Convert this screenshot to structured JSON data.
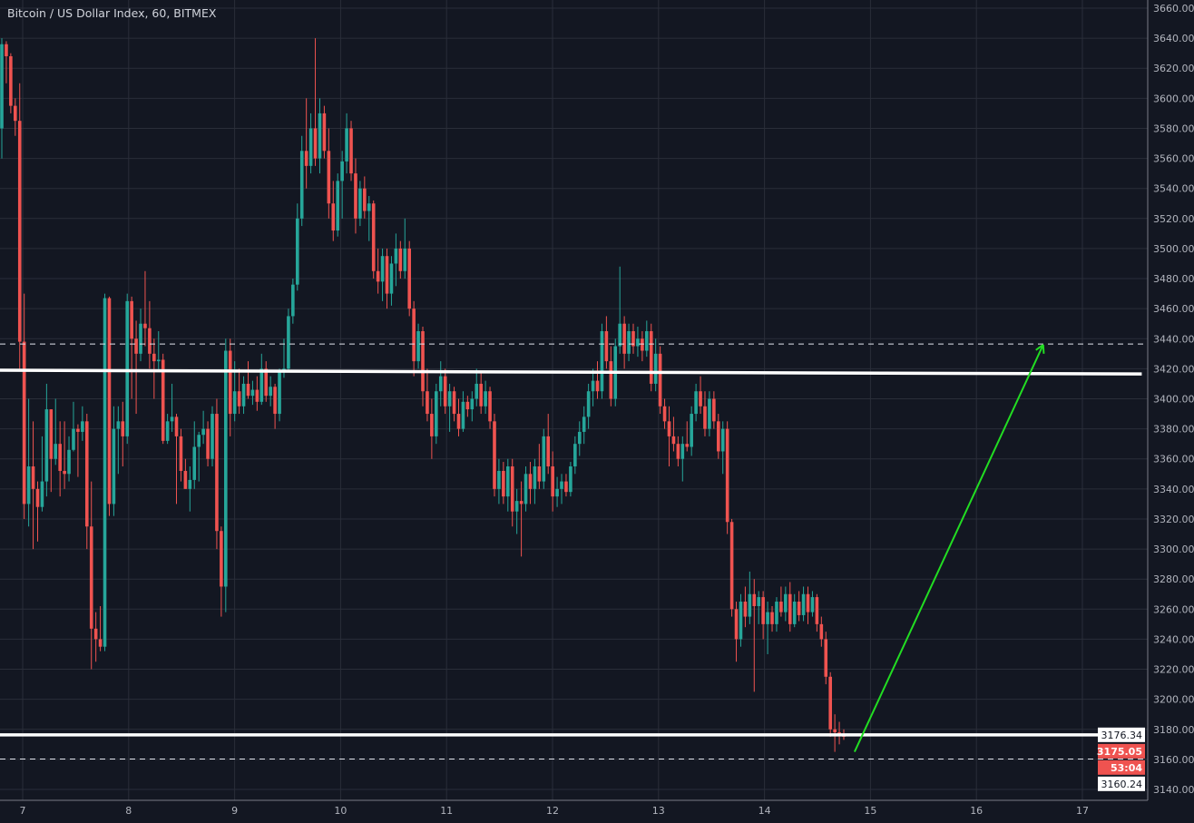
{
  "header": {
    "title": "Bitcoin / US Dollar Index, 60, BITMEX"
  },
  "colors": {
    "background": "#131722",
    "grid": "#2a2e39",
    "up": "#26a69a",
    "down": "#ef5350",
    "axis_text": "#b2b5be",
    "drawing_line": "#ffffff",
    "arrow": "#22dd22"
  },
  "chart_data": {
    "type": "candlestick",
    "title": "Bitcoin / US Dollar Index, 60, BITMEX",
    "interval": "60",
    "ylim": [
      3140,
      3660
    ],
    "xlim": [
      6.786,
      17.6
    ],
    "grid": true,
    "y_ticks": [
      "3660.00",
      "3640.00",
      "3620.00",
      "3600.00",
      "3580.00",
      "3560.00",
      "3540.00",
      "3520.00",
      "3500.00",
      "3480.00",
      "3460.00",
      "3440.00",
      "3420.00",
      "3400.00",
      "3380.00",
      "3360.00",
      "3340.00",
      "3320.00",
      "3300.00",
      "3280.00",
      "3260.00",
      "3240.00",
      "3220.00",
      "3200.00",
      "3180.00",
      "3160.00",
      "3140.00"
    ],
    "x_ticks": [
      "7",
      "8",
      "9",
      "10",
      "11",
      "12",
      "13",
      "14",
      "15",
      "16",
      "17"
    ],
    "candles_ohlc": [
      [
        3580,
        3640,
        3560,
        3636
      ],
      [
        3636,
        3638,
        3610,
        3628
      ],
      [
        3628,
        3630,
        3590,
        3595
      ],
      [
        3595,
        3600,
        3575,
        3585
      ],
      [
        3585,
        3610,
        3420,
        3438
      ],
      [
        3438,
        3470,
        3320,
        3330
      ],
      [
        3330,
        3400,
        3315,
        3355
      ],
      [
        3355,
        3385,
        3300,
        3340
      ],
      [
        3340,
        3345,
        3305,
        3328
      ],
      [
        3328,
        3375,
        3325,
        3345
      ],
      [
        3345,
        3410,
        3335,
        3393
      ],
      [
        3393,
        3393,
        3338,
        3360
      ],
      [
        3360,
        3400,
        3356,
        3370
      ],
      [
        3370,
        3385,
        3335,
        3352
      ],
      [
        3352,
        3385,
        3340,
        3350
      ],
      [
        3350,
        3375,
        3345,
        3366
      ],
      [
        3366,
        3398,
        3365,
        3380
      ],
      [
        3380,
        3383,
        3348,
        3378
      ],
      [
        3378,
        3395,
        3372,
        3385
      ],
      [
        3385,
        3390,
        3300,
        3315
      ],
      [
        3315,
        3345,
        3220,
        3247
      ],
      [
        3247,
        3258,
        3225,
        3240
      ],
      [
        3240,
        3262,
        3232,
        3235
      ],
      [
        3235,
        3470,
        3232,
        3467
      ],
      [
        3467,
        3468,
        3322,
        3330
      ],
      [
        3330,
        3395,
        3322,
        3380
      ],
      [
        3380,
        3395,
        3350,
        3385
      ],
      [
        3385,
        3398,
        3355,
        3375
      ],
      [
        3375,
        3470,
        3370,
        3465
      ],
      [
        3465,
        3468,
        3400,
        3440
      ],
      [
        3440,
        3452,
        3390,
        3430
      ],
      [
        3430,
        3460,
        3425,
        3450
      ],
      [
        3450,
        3485,
        3435,
        3447
      ],
      [
        3447,
        3465,
        3420,
        3430
      ],
      [
        3430,
        3440,
        3400,
        3425
      ],
      [
        3425,
        3445,
        3418,
        3426
      ],
      [
        3426,
        3430,
        3370,
        3372
      ],
      [
        3372,
        3390,
        3370,
        3385
      ],
      [
        3385,
        3410,
        3378,
        3388
      ],
      [
        3388,
        3390,
        3330,
        3375
      ],
      [
        3375,
        3380,
        3345,
        3352
      ],
      [
        3352,
        3360,
        3340,
        3340
      ],
      [
        3340,
        3355,
        3325,
        3346
      ],
      [
        3346,
        3385,
        3340,
        3368
      ],
      [
        3368,
        3378,
        3345,
        3376
      ],
      [
        3376,
        3392,
        3370,
        3380
      ],
      [
        3380,
        3385,
        3355,
        3360
      ],
      [
        3360,
        3395,
        3355,
        3390
      ],
      [
        3390,
        3400,
        3300,
        3312
      ],
      [
        3312,
        3315,
        3255,
        3275
      ],
      [
        3275,
        3440,
        3258,
        3432
      ],
      [
        3432,
        3440,
        3375,
        3390
      ],
      [
        3390,
        3425,
        3385,
        3405
      ],
      [
        3405,
        3420,
        3390,
        3395
      ],
      [
        3395,
        3415,
        3390,
        3410
      ],
      [
        3410,
        3425,
        3400,
        3402
      ],
      [
        3402,
        3412,
        3396,
        3406
      ],
      [
        3406,
        3415,
        3392,
        3398
      ],
      [
        3398,
        3430,
        3396,
        3420
      ],
      [
        3420,
        3425,
        3398,
        3402
      ],
      [
        3402,
        3415,
        3395,
        3408
      ],
      [
        3408,
        3410,
        3380,
        3390
      ],
      [
        3390,
        3420,
        3385,
        3418
      ],
      [
        3418,
        3440,
        3414,
        3420
      ],
      [
        3420,
        3460,
        3418,
        3455
      ],
      [
        3455,
        3480,
        3450,
        3476
      ],
      [
        3476,
        3530,
        3472,
        3520
      ],
      [
        3520,
        3575,
        3515,
        3565
      ],
      [
        3565,
        3600,
        3540,
        3555
      ],
      [
        3555,
        3590,
        3550,
        3580
      ],
      [
        3580,
        3640,
        3555,
        3560
      ],
      [
        3560,
        3600,
        3550,
        3590
      ],
      [
        3590,
        3595,
        3560,
        3565
      ],
      [
        3565,
        3580,
        3520,
        3530
      ],
      [
        3530,
        3545,
        3505,
        3512
      ],
      [
        3512,
        3550,
        3508,
        3545
      ],
      [
        3545,
        3565,
        3520,
        3558
      ],
      [
        3558,
        3590,
        3550,
        3580
      ],
      [
        3580,
        3585,
        3545,
        3550
      ],
      [
        3550,
        3560,
        3510,
        3520
      ],
      [
        3520,
        3545,
        3515,
        3540
      ],
      [
        3540,
        3548,
        3520,
        3525
      ],
      [
        3525,
        3535,
        3505,
        3530
      ],
      [
        3530,
        3532,
        3480,
        3485
      ],
      [
        3485,
        3500,
        3470,
        3478
      ],
      [
        3478,
        3500,
        3465,
        3495
      ],
      [
        3495,
        3500,
        3460,
        3470
      ],
      [
        3470,
        3495,
        3462,
        3490
      ],
      [
        3490,
        3510,
        3475,
        3500
      ],
      [
        3500,
        3505,
        3480,
        3485
      ],
      [
        3485,
        3520,
        3480,
        3500
      ],
      [
        3500,
        3505,
        3455,
        3460
      ],
      [
        3460,
        3465,
        3415,
        3425
      ],
      [
        3425,
        3450,
        3420,
        3445
      ],
      [
        3445,
        3448,
        3395,
        3405
      ],
      [
        3405,
        3420,
        3385,
        3390
      ],
      [
        3390,
        3400,
        3360,
        3375
      ],
      [
        3375,
        3410,
        3370,
        3405
      ],
      [
        3405,
        3425,
        3395,
        3415
      ],
      [
        3415,
        3420,
        3390,
        3395
      ],
      [
        3395,
        3410,
        3378,
        3405
      ],
      [
        3405,
        3408,
        3385,
        3390
      ],
      [
        3390,
        3400,
        3375,
        3380
      ],
      [
        3380,
        3405,
        3378,
        3398
      ],
      [
        3398,
        3402,
        3388,
        3393
      ],
      [
        3393,
        3405,
        3385,
        3400
      ],
      [
        3400,
        3420,
        3395,
        3410
      ],
      [
        3410,
        3418,
        3390,
        3395
      ],
      [
        3395,
        3412,
        3390,
        3405
      ],
      [
        3405,
        3408,
        3380,
        3385
      ],
      [
        3385,
        3390,
        3335,
        3340
      ],
      [
        3340,
        3360,
        3330,
        3352
      ],
      [
        3352,
        3358,
        3330,
        3335
      ],
      [
        3335,
        3360,
        3325,
        3355
      ],
      [
        3355,
        3360,
        3315,
        3325
      ],
      [
        3325,
        3340,
        3310,
        3332
      ],
      [
        3332,
        3345,
        3295,
        3330
      ],
      [
        3330,
        3355,
        3325,
        3350
      ],
      [
        3350,
        3358,
        3330,
        3340
      ],
      [
        3340,
        3360,
        3330,
        3355
      ],
      [
        3355,
        3370,
        3340,
        3345
      ],
      [
        3345,
        3380,
        3340,
        3375
      ],
      [
        3375,
        3390,
        3350,
        3355
      ],
      [
        3355,
        3365,
        3325,
        3335
      ],
      [
        3335,
        3348,
        3328,
        3340
      ],
      [
        3340,
        3350,
        3330,
        3345
      ],
      [
        3345,
        3350,
        3335,
        3338
      ],
      [
        3338,
        3358,
        3335,
        3355
      ],
      [
        3355,
        3375,
        3350,
        3370
      ],
      [
        3370,
        3385,
        3362,
        3378
      ],
      [
        3378,
        3395,
        3370,
        3388
      ],
      [
        3388,
        3410,
        3380,
        3405
      ],
      [
        3405,
        3420,
        3395,
        3412
      ],
      [
        3412,
        3425,
        3400,
        3405
      ],
      [
        3405,
        3450,
        3400,
        3445
      ],
      [
        3445,
        3455,
        3420,
        3425
      ],
      [
        3425,
        3435,
        3395,
        3400
      ],
      [
        3400,
        3440,
        3395,
        3435
      ],
      [
        3435,
        3488,
        3430,
        3450
      ],
      [
        3450,
        3455,
        3420,
        3430
      ],
      [
        3430,
        3450,
        3425,
        3445
      ],
      [
        3445,
        3450,
        3430,
        3435
      ],
      [
        3435,
        3448,
        3428,
        3440
      ],
      [
        3440,
        3445,
        3425,
        3432
      ],
      [
        3432,
        3452,
        3428,
        3445
      ],
      [
        3445,
        3450,
        3405,
        3410
      ],
      [
        3410,
        3440,
        3405,
        3430
      ],
      [
        3430,
        3435,
        3390,
        3395
      ],
      [
        3395,
        3400,
        3380,
        3385
      ],
      [
        3385,
        3395,
        3355,
        3375
      ],
      [
        3375,
        3388,
        3365,
        3370
      ],
      [
        3370,
        3375,
        3355,
        3360
      ],
      [
        3360,
        3375,
        3345,
        3370
      ],
      [
        3370,
        3385,
        3365,
        3368
      ],
      [
        3368,
        3395,
        3362,
        3390
      ],
      [
        3390,
        3410,
        3385,
        3405
      ],
      [
        3405,
        3415,
        3390,
        3395
      ],
      [
        3395,
        3405,
        3375,
        3380
      ],
      [
        3380,
        3405,
        3375,
        3400
      ],
      [
        3400,
        3405,
        3380,
        3385
      ],
      [
        3385,
        3390,
        3360,
        3365
      ],
      [
        3365,
        3385,
        3350,
        3380
      ],
      [
        3380,
        3385,
        3310,
        3318
      ],
      [
        3318,
        3320,
        3255,
        3260
      ],
      [
        3260,
        3265,
        3225,
        3240
      ],
      [
        3240,
        3270,
        3235,
        3265
      ],
      [
        3265,
        3275,
        3248,
        3255
      ],
      [
        3255,
        3285,
        3250,
        3270
      ],
      [
        3270,
        3280,
        3205,
        3262
      ],
      [
        3262,
        3272,
        3250,
        3268
      ],
      [
        3268,
        3272,
        3240,
        3250
      ],
      [
        3250,
        3265,
        3230,
        3258
      ],
      [
        3258,
        3262,
        3245,
        3250
      ],
      [
        3250,
        3268,
        3245,
        3265
      ],
      [
        3265,
        3275,
        3255,
        3258
      ],
      [
        3258,
        3275,
        3252,
        3270
      ],
      [
        3270,
        3278,
        3245,
        3250
      ],
      [
        3250,
        3270,
        3248,
        3265
      ],
      [
        3265,
        3272,
        3252,
        3256
      ],
      [
        3256,
        3275,
        3252,
        3270
      ],
      [
        3270,
        3275,
        3250,
        3258
      ],
      [
        3258,
        3272,
        3255,
        3268
      ],
      [
        3268,
        3270,
        3245,
        3250
      ],
      [
        3250,
        3255,
        3235,
        3240
      ],
      [
        3240,
        3245,
        3210,
        3215
      ],
      [
        3215,
        3218,
        3175,
        3180
      ],
      [
        3180,
        3190,
        3165,
        3178
      ],
      [
        3178,
        3185,
        3170,
        3176
      ],
      [
        3176,
        3180,
        3173,
        3175.05
      ]
    ],
    "drawings": {
      "horizontal_lines": [
        {
          "kind": "solid",
          "from": [
            6.786,
            3419
          ],
          "to": [
            17.56,
            3416.5
          ]
        },
        {
          "kind": "solid",
          "from": [
            6.786,
            3176.34
          ],
          "to": [
            17.56,
            3176.34
          ]
        },
        {
          "kind": "dashed",
          "price": 3436.5
        },
        {
          "kind": "dashed",
          "price": 3160.24
        }
      ],
      "arrow": {
        "from": [
          14.85,
          3165
        ],
        "to": [
          16.63,
          3436
        ]
      }
    },
    "price_labels": [
      {
        "text": "3176.34",
        "price": 3176.34,
        "style": "white"
      },
      {
        "text": "3175.05",
        "price": 3175.05,
        "style": "red"
      },
      {
        "text": "53:04",
        "price": 3166.5,
        "style": "red"
      },
      {
        "text": "3160.24",
        "price": 3160.24,
        "style": "white"
      }
    ]
  }
}
